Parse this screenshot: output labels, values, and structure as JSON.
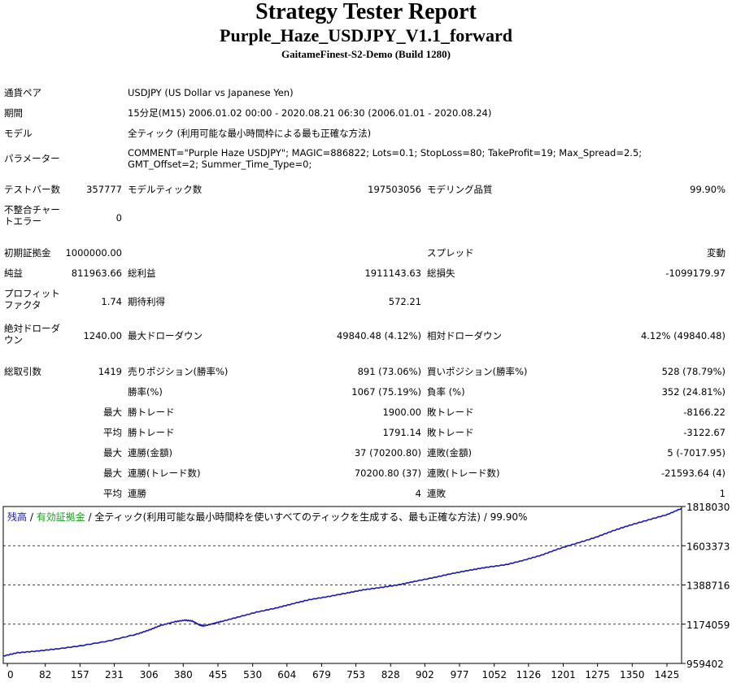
{
  "header": {
    "title": "Strategy Tester Report",
    "subtitle": "Purple_Haze_USDJPY_V1.1_forward",
    "server": "GaitameFinest-S2-Demo (Build 1280)"
  },
  "info": {
    "symbol_label": "通貨ペア",
    "symbol_value": "USDJPY (US Dollar vs Japanese Yen)",
    "period_label": "期間",
    "period_value": "15分足(M15) 2006.01.02 00:00 - 2020.08.21 06:30 (2006.01.01 - 2020.08.24)",
    "model_label": "モデル",
    "model_value": "全ティック (利用可能な最小時間枠による最も正確な方法)",
    "params_label": "パラメーター",
    "params_value": "COMMENT=\"Purple Haze USDJPY\"; MAGIC=886822; Lots=0.1; StopLoss=80; TakeProfit=19; Max_Spread=2.5; GMT_Offset=2; Summer_Time_Type=0;"
  },
  "stats": {
    "bars_label": "テストバー数",
    "bars_value": "357777",
    "ticks_label": "モデルティック数",
    "ticks_value": "197503056",
    "quality_label": "モデリング品質",
    "quality_value": "99.90%",
    "mismatch_label": "不整合チャートエラー",
    "mismatch_value": "0",
    "deposit_label": "初期証拠金",
    "deposit_value": "1000000.00",
    "spread_label": "スプレッド",
    "spread_value": "変動",
    "net_label": "純益",
    "net_value": "811963.66",
    "gross_profit_label": "総利益",
    "gross_profit_value": "1911143.63",
    "gross_loss_label": "総損失",
    "gross_loss_value": "-1099179.97",
    "pf_label": "プロフィットファクタ",
    "pf_value": "1.74",
    "expected_label": "期待利得",
    "expected_value": "572.21",
    "abs_dd_label": "絶対ドローダウン",
    "abs_dd_value": "1240.00",
    "max_dd_label": "最大ドローダウン",
    "max_dd_value": "49840.48 (4.12%)",
    "rel_dd_label": "相対ドローダウン",
    "rel_dd_value": "4.12% (49840.48)",
    "trades_label": "総取引数",
    "trades_value": "1419",
    "short_label": "売りポジション(勝率%)",
    "short_value": "891 (73.06%)",
    "long_label": "買いポジション(勝率%)",
    "long_value": "528 (78.79%)",
    "win_rate_label": "勝率(%)",
    "win_rate_value": "1067 (75.19%)",
    "loss_rate_label": "負率 (%)",
    "loss_rate_value": "352 (24.81%)",
    "max_word": "最大",
    "avg_word": "平均",
    "largest_win_label": "勝トレード",
    "largest_win_value": "1900.00",
    "largest_loss_label": "敗トレード",
    "largest_loss_value": "-8166.22",
    "avg_win_label": "勝トレード",
    "avg_win_value": "1791.14",
    "avg_loss_label": "敗トレード",
    "avg_loss_value": "-3122.67",
    "cons_wins_amt_label": "連勝(金額)",
    "cons_wins_amt_value": "37 (70200.80)",
    "cons_losses_amt_label": "連敗(金額)",
    "cons_losses_amt_value": "5 (-7017.95)",
    "cons_wins_cnt_label": "連勝(トレード数)",
    "cons_wins_cnt_value": "70200.80 (37)",
    "cons_losses_cnt_label": "連敗(トレード数)",
    "cons_losses_cnt_value": "-21593.64 (4)",
    "avg_cons_wins_label": "連勝",
    "avg_cons_wins_value": "4",
    "avg_cons_losses_label": "連敗",
    "avg_cons_losses_value": "1"
  },
  "legend": {
    "balance": "残高",
    "sep1": " / ",
    "equity": "有効証拠金",
    "sep2": " / ",
    "rest": "全ティック(利用可能な最小時間枠を使いすべてのティックを生成する、最も正確な方法) / 99.90%"
  },
  "colors": {
    "balance_line": "#1818b0",
    "equity_legend": "#1a9a1a",
    "grid": "#000000"
  },
  "chart_data": {
    "type": "line",
    "title": "",
    "xlabel": "",
    "ylabel": "",
    "x_ticks": [
      "0",
      "82",
      "157",
      "231",
      "306",
      "380",
      "455",
      "530",
      "604",
      "679",
      "753",
      "828",
      "902",
      "977",
      "1052",
      "1126",
      "1201",
      "1275",
      "1350",
      "1425"
    ],
    "x_tick_values": [
      0,
      82,
      157,
      231,
      306,
      380,
      455,
      530,
      604,
      679,
      753,
      828,
      902,
      977,
      1052,
      1126,
      1201,
      1275,
      1350,
      1425
    ],
    "y_ticks": [
      "959402",
      "1174059",
      "1388716",
      "1603373",
      "1818030"
    ],
    "y_tick_values": [
      959402,
      1174059,
      1388716,
      1603373,
      1818030
    ],
    "xlim": [
      0,
      1419
    ],
    "ylim": [
      959402,
      1818030
    ],
    "grid": true,
    "series": [
      {
        "name": "残高",
        "x": [
          0,
          30,
          70,
          110,
          160,
          220,
          280,
          306,
          330,
          360,
          380,
          395,
          410,
          420,
          440,
          455,
          490,
          530,
          570,
          604,
          640,
          679,
          720,
          753,
          790,
          828,
          860,
          902,
          940,
          977,
          1010,
          1052,
          1090,
          1126,
          1160,
          1201,
          1240,
          1275,
          1310,
          1350,
          1390,
          1419
        ],
        "y": [
          1000000,
          1018000,
          1027000,
          1038000,
          1055000,
          1082000,
          1120000,
          1143000,
          1168000,
          1188000,
          1196000,
          1192000,
          1170000,
          1165000,
          1178000,
          1188000,
          1212000,
          1240000,
          1262000,
          1285000,
          1308000,
          1325000,
          1345000,
          1362000,
          1375000,
          1390000,
          1408000,
          1430000,
          1452000,
          1470000,
          1485000,
          1500000,
          1525000,
          1552000,
          1585000,
          1618000,
          1650000,
          1685000,
          1715000,
          1745000,
          1775000,
          1808000
        ]
      }
    ]
  }
}
